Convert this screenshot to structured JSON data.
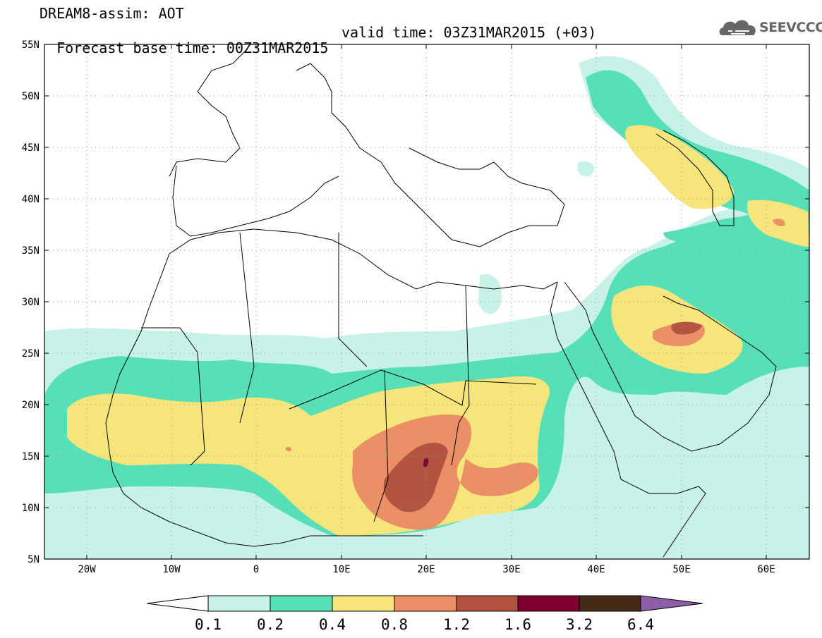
{
  "header": {
    "title": "DREAM8-assim: AOT",
    "base_time": "Forecast base time: 00Z31MAR2015",
    "valid_time": "valid time: 03Z31MAR2015 (+03)",
    "logo_text": "SEEVCCC"
  },
  "axes": {
    "lat_labels": [
      "55N",
      "50N",
      "45N",
      "40N",
      "35N",
      "30N",
      "25N",
      "20N",
      "15N",
      "10N",
      "5N"
    ],
    "lon_labels": [
      "20W",
      "10W",
      "0",
      "10E",
      "20E",
      "30E",
      "40E",
      "50E",
      "60E"
    ]
  },
  "colorbar": {
    "labels": [
      "0.1",
      "0.2",
      "0.4",
      "0.8",
      "1.2",
      "1.6",
      "3.2",
      "6.4"
    ],
    "colors": [
      "#ffffff",
      "#c8f2e8",
      "#57e0b8",
      "#f5e57a",
      "#eb9066",
      "#b35440",
      "#7d0030",
      "#452a18",
      "#8e5ea8"
    ]
  },
  "map": {
    "lon_range": [
      -25,
      65
    ],
    "lat_range": [
      5,
      55
    ],
    "grid": "dotted"
  }
}
